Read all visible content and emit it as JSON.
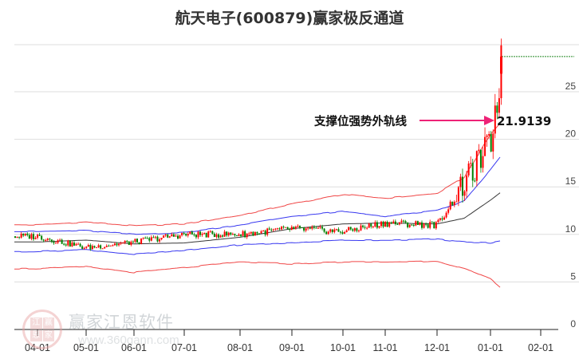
{
  "title": "航天电子(600879)赢家极反通道",
  "watermark": {
    "logo_chars": [
      "江",
      "赢",
      "恩",
      "家"
    ],
    "name": "赢家江恩软件",
    "url": "www.360gann.com"
  },
  "colors": {
    "up": "#ff0000",
    "down": "#008000",
    "outer_band": "#ee3333",
    "inner_band": "#2222ee",
    "middle": "#222222",
    "annotation_arrow": "#ee2277",
    "resistance_dashed": "#228822",
    "grid": "#dddddd"
  },
  "annotation": {
    "label": "支撑位强势外轨线",
    "value": "21.9139"
  },
  "chart_data": {
    "type": "candlestick",
    "title": "航天电子(600879)赢家极反通道",
    "xlabel": "",
    "ylabel": "",
    "ylim": [
      0,
      30
    ],
    "y_ticks": [
      0,
      5,
      10,
      15,
      20,
      25
    ],
    "x_ticks": [
      "04-01",
      "05-01",
      "06-01",
      "07-01",
      "08-01",
      "09-01",
      "10-01",
      "11-01",
      "12-01",
      "01-01",
      "02-01"
    ],
    "grid": true,
    "legend": "none",
    "annotations": [
      {
        "text": "支撑位强势外轨线",
        "value": 21.9139,
        "type": "arrow"
      }
    ],
    "series": [
      {
        "name": "close (approx. monthly)",
        "x": [
          "04-01",
          "05-01",
          "06-01",
          "07-01",
          "08-01",
          "09-01",
          "10-01",
          "11-01",
          "12-01",
          "01-01",
          "01-08"
        ],
        "values": [
          9.8,
          8.6,
          9.2,
          10.0,
          10.0,
          10.6,
          10.3,
          11.2,
          11.0,
          19.5,
          28.0
        ]
      },
      {
        "name": "outer upper band",
        "x": [
          "04-01",
          "05-01",
          "06-01",
          "07-01",
          "08-01",
          "09-01",
          "10-01",
          "11-01",
          "12-01",
          "12-15",
          "01-01",
          "01-08"
        ],
        "values": [
          11.0,
          11.3,
          10.9,
          11.1,
          12.0,
          13.2,
          14.2,
          13.8,
          14.3,
          16.0,
          20.5,
          21.9
        ]
      },
      {
        "name": "inner upper band",
        "x": [
          "04-01",
          "05-01",
          "06-01",
          "07-01",
          "08-01",
          "09-01",
          "10-01",
          "11-01",
          "12-01",
          "12-15",
          "01-01",
          "01-08"
        ],
        "values": [
          10.3,
          10.4,
          10.0,
          10.2,
          11.0,
          11.9,
          12.4,
          11.9,
          12.5,
          13.5,
          16.8,
          18.3
        ]
      },
      {
        "name": "middle line",
        "x": [
          "04-01",
          "05-01",
          "06-01",
          "07-01",
          "08-01",
          "09-01",
          "10-01",
          "11-01",
          "12-01",
          "12-15",
          "01-01",
          "01-08"
        ],
        "values": [
          9.2,
          9.4,
          9.0,
          9.1,
          9.7,
          10.6,
          11.1,
          11.2,
          11.1,
          11.7,
          13.6,
          14.5
        ]
      },
      {
        "name": "inner lower band",
        "x": [
          "04-01",
          "05-01",
          "06-01",
          "07-01",
          "08-01",
          "09-01",
          "10-01",
          "11-01",
          "12-01",
          "12-15",
          "01-01",
          "01-08"
        ],
        "values": [
          8.2,
          8.4,
          7.9,
          8.3,
          8.9,
          9.1,
          9.4,
          9.4,
          9.5,
          9.2,
          9.1,
          9.3
        ]
      },
      {
        "name": "outer lower band",
        "x": [
          "04-01",
          "05-01",
          "06-01",
          "07-01",
          "08-01",
          "09-01",
          "10-01",
          "11-01",
          "12-01",
          "12-15",
          "01-01",
          "01-08"
        ],
        "values": [
          6.4,
          6.6,
          6.0,
          6.5,
          7.1,
          6.9,
          7.1,
          7.1,
          7.2,
          6.4,
          5.3,
          4.3
        ]
      },
      {
        "name": "resistance dashed",
        "x": [
          "01-08",
          "02-20"
        ],
        "values": [
          28.7,
          28.7
        ]
      }
    ]
  }
}
